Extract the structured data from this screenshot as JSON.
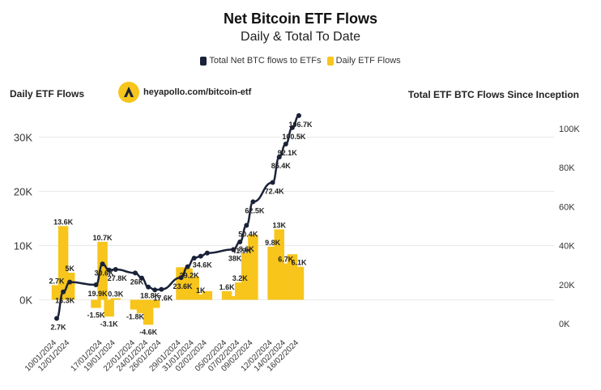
{
  "header": {
    "title": "Net Bitcoin ETF Flows",
    "subtitle": "Daily & Total To Date"
  },
  "legend": {
    "total_label": "Total Net BTC flows to ETFs",
    "daily_label": "Daily ETF Flows"
  },
  "left_axis_title": "Daily ETF Flows",
  "right_axis_title": "Total ETF BTC Flows Since Inception",
  "brand": {
    "text": "heyapollo.com/bitcoin-etf",
    "icon": "apollo-logo-icon"
  },
  "colors": {
    "bar": "#f7c51b",
    "line": "#1a2238",
    "grid": "#e8e8e8",
    "text": "#333333"
  },
  "chart_data": {
    "type": "bar",
    "x_ticks": [
      "10/01/2024",
      "12/01/2024",
      "17/01/2024",
      "19/01/2024",
      "22/01/2024",
      "24/01/2024",
      "26/01/2024",
      "29/01/2024",
      "31/01/2024",
      "02/02/2024",
      "05/02/2024",
      "07/02/2024",
      "09/02/2024",
      "12/02/2024",
      "14/02/2024",
      "16/02/2024"
    ],
    "y_left": {
      "ticks": [
        "0K",
        "10K",
        "20K",
        "30K"
      ],
      "values": [
        0,
        10000,
        20000,
        30000
      ],
      "lim": [
        -6500,
        34000
      ]
    },
    "y_right": {
      "ticks": [
        "0K",
        "20K",
        "40K",
        "60K",
        "80K",
        "100K"
      ],
      "values": [
        0,
        20000,
        40000,
        60000,
        80000,
        100000
      ],
      "lim": [
        -3000,
        108000
      ]
    },
    "series": [
      {
        "name": "Daily ETF Flows",
        "type": "bar",
        "points": [
          {
            "x": "2024-01-10",
            "y": 2700
          },
          {
            "x": "2024-01-11",
            "y": 13600
          },
          {
            "x": "2024-01-12",
            "y": 5000
          },
          {
            "x": "2024-01-16",
            "y": -1500
          },
          {
            "x": "2024-01-17",
            "y": 10700
          },
          {
            "x": "2024-01-18",
            "y": -3100
          },
          {
            "x": "2024-01-19",
            "y": 300
          },
          {
            "x": "2024-01-22",
            "y": -1800
          },
          {
            "x": "2024-01-23",
            "y": -2500
          },
          {
            "x": "2024-01-24",
            "y": -4600
          },
          {
            "x": "2024-01-25",
            "y": -1500
          },
          {
            "x": "2024-01-29",
            "y": 6000
          },
          {
            "x": "2024-01-30",
            "y": 5800
          },
          {
            "x": "2024-01-31",
            "y": 4300
          },
          {
            "x": "2024-02-01",
            "y": 1000
          },
          {
            "x": "2024-02-02",
            "y": 1600
          },
          {
            "x": "2024-02-05",
            "y": 1600
          },
          {
            "x": "2024-02-06",
            "y": 700
          },
          {
            "x": "2024-02-07",
            "y": 3200
          },
          {
            "x": "2024-02-08",
            "y": 8600
          },
          {
            "x": "2024-02-09",
            "y": 12000
          },
          {
            "x": "2024-02-12",
            "y": 9800
          },
          {
            "x": "2024-02-13",
            "y": 13000
          },
          {
            "x": "2024-02-14",
            "y": 6700
          },
          {
            "x": "2024-02-15",
            "y": 8400
          },
          {
            "x": "2024-02-16",
            "y": 6100
          }
        ]
      },
      {
        "name": "Total Net BTC flows to ETFs",
        "type": "line",
        "points": [
          {
            "x": "2024-01-10",
            "y": 2700
          },
          {
            "x": "2024-01-11",
            "y": 16300
          },
          {
            "x": "2024-01-12",
            "y": 21300
          },
          {
            "x": "2024-01-16",
            "y": 19900
          },
          {
            "x": "2024-01-17",
            "y": 30600
          },
          {
            "x": "2024-01-18",
            "y": 27500
          },
          {
            "x": "2024-01-19",
            "y": 27800
          },
          {
            "x": "2024-01-22",
            "y": 26000
          },
          {
            "x": "2024-01-23",
            "y": 23400
          },
          {
            "x": "2024-01-24",
            "y": 18800
          },
          {
            "x": "2024-01-25",
            "y": 17300
          },
          {
            "x": "2024-01-26",
            "y": 17600
          },
          {
            "x": "2024-01-29",
            "y": 23600
          },
          {
            "x": "2024-01-30",
            "y": 29200
          },
          {
            "x": "2024-01-31",
            "y": 33600
          },
          {
            "x": "2024-02-01",
            "y": 34600
          },
          {
            "x": "2024-02-02",
            "y": 36200
          },
          {
            "x": "2024-02-06",
            "y": 38000
          },
          {
            "x": "2024-02-07",
            "y": 41900
          },
          {
            "x": "2024-02-08",
            "y": 50400
          },
          {
            "x": "2024-02-09",
            "y": 62500
          },
          {
            "x": "2024-02-12",
            "y": 72400
          },
          {
            "x": "2024-02-13",
            "y": 85400
          },
          {
            "x": "2024-02-14",
            "y": 92100
          },
          {
            "x": "2024-02-15",
            "y": 100500
          },
          {
            "x": "2024-02-16",
            "y": 106700
          }
        ]
      }
    ],
    "bar_labels": [
      {
        "x": "2024-01-10",
        "y": 2700,
        "text": "2.7K"
      },
      {
        "x": "2024-01-11",
        "y": 13600,
        "text": "13.6K"
      },
      {
        "x": "2024-01-12",
        "y": 5000,
        "text": "5K"
      },
      {
        "x": "2024-01-16",
        "y": -1500,
        "text": "-1.5K"
      },
      {
        "x": "2024-01-17",
        "y": 10700,
        "text": "10.7K"
      },
      {
        "x": "2024-01-18",
        "y": -3100,
        "text": "-3.1K"
      },
      {
        "x": "2024-01-19",
        "y": 300,
        "text": "0.3K"
      },
      {
        "x": "2024-01-22",
        "y": -1800,
        "text": "-1.8K"
      },
      {
        "x": "2024-01-24",
        "y": -4600,
        "text": "-4.6K"
      },
      {
        "x": "2024-02-01",
        "y": 1000,
        "text": "1K"
      },
      {
        "x": "2024-02-05",
        "y": 1600,
        "text": "1.6K"
      },
      {
        "x": "2024-02-07",
        "y": 3200,
        "text": "3.2K"
      },
      {
        "x": "2024-02-08",
        "y": 8600,
        "text": "8.6K"
      },
      {
        "x": "2024-02-12",
        "y": 9800,
        "text": "9.8K"
      },
      {
        "x": "2024-02-13",
        "y": 13000,
        "text": "13K"
      },
      {
        "x": "2024-02-14",
        "y": 6700,
        "text": "6.7K"
      },
      {
        "x": "2024-02-16",
        "y": 6100,
        "text": "6.1K"
      }
    ],
    "line_labels": [
      {
        "x": "2024-01-10",
        "y": 2700,
        "text": "2.7K"
      },
      {
        "x": "2024-01-11",
        "y": 16300,
        "text": "16.3K"
      },
      {
        "x": "2024-01-16",
        "y": 19900,
        "text": "19.9K"
      },
      {
        "x": "2024-01-17",
        "y": 30600,
        "text": "30.6K"
      },
      {
        "x": "2024-01-19",
        "y": 27800,
        "text": "27.8K"
      },
      {
        "x": "2024-01-22",
        "y": 26000,
        "text": "26K"
      },
      {
        "x": "2024-01-24",
        "y": 18800,
        "text": "18.8K"
      },
      {
        "x": "2024-01-26",
        "y": 17600,
        "text": "17.6K"
      },
      {
        "x": "2024-01-29",
        "y": 23600,
        "text": "23.6K"
      },
      {
        "x": "2024-01-30",
        "y": 29200,
        "text": "29.2K"
      },
      {
        "x": "2024-02-01",
        "y": 34600,
        "text": "34.6K"
      },
      {
        "x": "2024-02-06",
        "y": 38000,
        "text": "38K"
      },
      {
        "x": "2024-02-07",
        "y": 41900,
        "text": "41.9K"
      },
      {
        "x": "2024-02-08",
        "y": 50400,
        "text": "50.4K"
      },
      {
        "x": "2024-02-09",
        "y": 62500,
        "text": "62.5K"
      },
      {
        "x": "2024-02-12",
        "y": 72400,
        "text": "72.4K"
      },
      {
        "x": "2024-02-13",
        "y": 85400,
        "text": "85.4K"
      },
      {
        "x": "2024-02-14",
        "y": 92100,
        "text": "92.1K"
      },
      {
        "x": "2024-02-15",
        "y": 100500,
        "text": "100.5K"
      },
      {
        "x": "2024-02-16",
        "y": 106700,
        "text": "106.7K"
      }
    ],
    "grid": true,
    "legend_position": "top-center"
  }
}
